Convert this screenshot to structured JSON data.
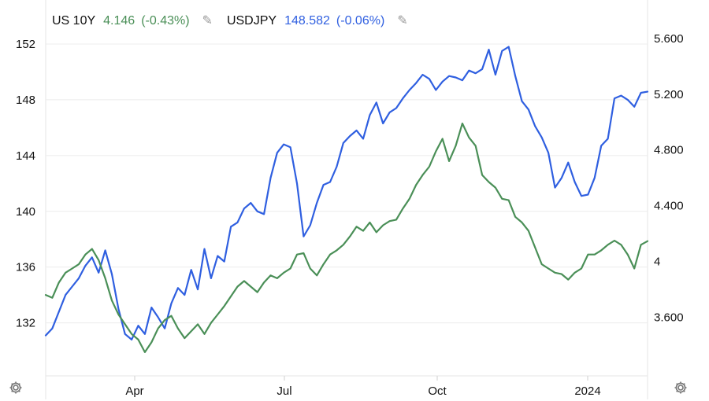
{
  "legend": {
    "us10y": {
      "symbol": "US 10Y",
      "value": "4.146",
      "change": "(-0.43%)",
      "edit_icon": "pencil-icon",
      "color": "#4a8f57"
    },
    "usdjpy": {
      "symbol": "USDJPY",
      "value": "148.582",
      "change": "(-0.06%)",
      "edit_icon": "pencil-icon",
      "color": "#2f5fe0"
    }
  },
  "settings": {
    "left_icon": "gear-icon",
    "right_icon": "gear-icon"
  },
  "chart_data": {
    "type": "line",
    "x_ticks": [
      "Apr",
      "Jul",
      "Oct",
      "2024"
    ],
    "left_axis": {
      "ticks": [
        "132",
        "136",
        "140",
        "144",
        "148",
        "152"
      ],
      "ylim": [
        128.2,
        152.9
      ]
    },
    "right_axis": {
      "ticks": [
        "3.600",
        "4",
        "4.400",
        "4.800",
        "5.200",
        "5.600"
      ],
      "ylim": [
        3.18,
        5.65
      ]
    },
    "grid": true,
    "legend_position": "top-left",
    "series": [
      {
        "name": "USDJPY",
        "axis": "left",
        "color": "#2f5fe0",
        "values": [
          131.1,
          131.6,
          132.8,
          134.0,
          134.6,
          135.2,
          136.1,
          136.7,
          135.6,
          137.2,
          135.5,
          133.0,
          131.2,
          130.8,
          131.8,
          131.2,
          133.1,
          132.4,
          131.6,
          133.4,
          134.5,
          134.0,
          135.8,
          134.4,
          137.3,
          135.2,
          136.8,
          136.4,
          138.9,
          139.2,
          140.2,
          140.6,
          140.0,
          139.8,
          142.4,
          144.2,
          144.8,
          144.6,
          142.0,
          138.2,
          139.0,
          140.6,
          141.9,
          142.1,
          143.2,
          144.9,
          145.4,
          145.8,
          145.2,
          146.9,
          147.8,
          146.3,
          147.1,
          147.4,
          148.1,
          148.7,
          149.2,
          149.8,
          149.5,
          148.7,
          149.3,
          149.7,
          149.6,
          149.4,
          150.1,
          149.9,
          150.2,
          151.6,
          149.8,
          151.5,
          151.8,
          149.7,
          147.9,
          147.3,
          146.1,
          145.3,
          144.2,
          141.7,
          142.4,
          143.5,
          142.1,
          141.1,
          141.2,
          142.4,
          144.7,
          145.2,
          148.1,
          148.3,
          148.0,
          147.5,
          148.5,
          148.582
        ]
      },
      {
        "name": "US 10Y",
        "axis": "right",
        "color": "#4a8f57",
        "values": [
          3.76,
          3.74,
          3.85,
          3.92,
          3.95,
          3.98,
          4.05,
          4.09,
          4.01,
          3.88,
          3.72,
          3.62,
          3.55,
          3.48,
          3.44,
          3.35,
          3.42,
          3.52,
          3.58,
          3.61,
          3.52,
          3.45,
          3.5,
          3.55,
          3.48,
          3.56,
          3.62,
          3.68,
          3.75,
          3.82,
          3.86,
          3.82,
          3.78,
          3.85,
          3.9,
          3.88,
          3.92,
          3.95,
          4.05,
          4.06,
          3.95,
          3.9,
          3.98,
          4.05,
          4.08,
          4.12,
          4.18,
          4.25,
          4.22,
          4.28,
          4.21,
          4.26,
          4.29,
          4.3,
          4.38,
          4.45,
          4.55,
          4.62,
          4.68,
          4.79,
          4.88,
          4.72,
          4.83,
          4.99,
          4.89,
          4.83,
          4.62,
          4.57,
          4.53,
          4.45,
          4.44,
          4.32,
          4.28,
          4.22,
          4.1,
          3.98,
          3.95,
          3.92,
          3.91,
          3.87,
          3.92,
          3.95,
          4.05,
          4.05,
          4.08,
          4.12,
          4.15,
          4.12,
          4.05,
          3.95,
          4.12,
          4.146
        ]
      }
    ]
  }
}
